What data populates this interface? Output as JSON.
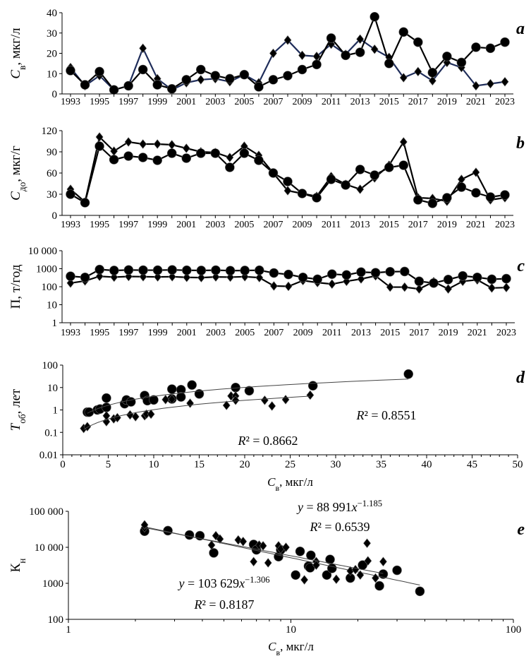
{
  "chart_data": [
    {
      "panel": "a",
      "type": "line",
      "ylabel": {
        "main": "C",
        "sub": "в",
        "unit": ", мкг/л"
      },
      "yticks": [
        "0",
        "10",
        "20",
        "30",
        "40"
      ],
      "ylim": [
        0,
        40
      ],
      "yscale": "linear",
      "xticks": [
        "1993",
        "1995",
        "1997",
        "1999",
        "2001",
        "2003",
        "2005",
        "2007",
        "2009",
        "2011",
        "2013",
        "2015",
        "2017",
        "2019",
        "2021",
        "2023"
      ],
      "x": [
        1993,
        1994,
        1995,
        1996,
        1997,
        1998,
        1999,
        2000,
        2001,
        2002,
        2003,
        2004,
        2005,
        2006,
        2007,
        2008,
        2009,
        2010,
        2011,
        2012,
        2013,
        2014,
        2015,
        2016,
        2017,
        2018,
        2019,
        2020,
        2021,
        2022,
        2023
      ],
      "series": [
        {
          "marker": "circle",
          "color": "#000000",
          "values": [
            11.5,
            4.5,
            11,
            2,
            4,
            12,
            4.5,
            2.5,
            7,
            12,
            9,
            7.5,
            9.5,
            3.5,
            7,
            9,
            12,
            14.5,
            27.5,
            19,
            20.5,
            38,
            15,
            30.5,
            25.5,
            10.5,
            18.5,
            15.5,
            23,
            22.5,
            25.5
          ]
        },
        {
          "marker": "diamond",
          "color": "#1f2d5a",
          "values": [
            13,
            4,
            9,
            2,
            4,
            22.5,
            7.5,
            2,
            5.5,
            7,
            7.5,
            6,
            9.5,
            5.5,
            20,
            26.5,
            19,
            18.5,
            24.5,
            19.5,
            27,
            22,
            18,
            8,
            11,
            6.5,
            15.5,
            13,
            4,
            5,
            6
          ]
        }
      ]
    },
    {
      "panel": "b",
      "type": "line",
      "ylabel": {
        "main": "C",
        "sub": "до",
        "unit": ", мкг/г"
      },
      "yticks": [
        "0",
        "30",
        "60",
        "90",
        "120"
      ],
      "ylim": [
        0,
        120
      ],
      "yscale": "linear",
      "xticks": [
        "1993",
        "1995",
        "1997",
        "1999",
        "2001",
        "2003",
        "2005",
        "2007",
        "2009",
        "2011",
        "2013",
        "2015",
        "2017",
        "2019",
        "2021",
        "2023"
      ],
      "x": [
        1993,
        1994,
        1995,
        1996,
        1997,
        1998,
        1999,
        2000,
        2001,
        2002,
        2003,
        2004,
        2005,
        2006,
        2007,
        2008,
        2009,
        2010,
        2011,
        2012,
        2013,
        2014,
        2015,
        2016,
        2017,
        2018,
        2019,
        2020,
        2021,
        2022,
        2023
      ],
      "series": [
        {
          "marker": "circle",
          "color": "#000000",
          "values": [
            30,
            18,
            98,
            79,
            84,
            82,
            78,
            88,
            81,
            88,
            88,
            68,
            88,
            78,
            60,
            48,
            31,
            25,
            51,
            43,
            65,
            57,
            68,
            71,
            22,
            17,
            25,
            40,
            32,
            26,
            29
          ]
        },
        {
          "marker": "diamond",
          "color": "#000000",
          "values": [
            37,
            19,
            111,
            91,
            104,
            101,
            101,
            100,
            95,
            90,
            89,
            82,
            98,
            85,
            60,
            35,
            31,
            27,
            55,
            44,
            37,
            53,
            71,
            104,
            25,
            24,
            20,
            51,
            61,
            22,
            25
          ]
        }
      ]
    },
    {
      "panel": "c",
      "type": "line",
      "ylabel": {
        "main": "П, т/год",
        "sub": "",
        "unit": ""
      },
      "yticks": [
        "1",
        "10",
        "100",
        "1000",
        "10 000"
      ],
      "ylim": [
        1,
        10000
      ],
      "yscale": "log",
      "xticks": [
        "1993",
        "1995",
        "1997",
        "1999",
        "2001",
        "2003",
        "2005",
        "2007",
        "2009",
        "2011",
        "2013",
        "2015",
        "2017",
        "2019",
        "2021",
        "2023"
      ],
      "x": [
        1993,
        1994,
        1995,
        1996,
        1997,
        1998,
        1999,
        2000,
        2001,
        2002,
        2003,
        2004,
        2005,
        2006,
        2007,
        2008,
        2009,
        2010,
        2011,
        2012,
        2013,
        2014,
        2015,
        2016,
        2017,
        2018,
        2019,
        2020,
        2021,
        2022,
        2023
      ],
      "series": [
        {
          "marker": "circle",
          "color": "#000000",
          "values": [
            380,
            330,
            900,
            800,
            850,
            830,
            830,
            860,
            820,
            800,
            830,
            780,
            800,
            820,
            580,
            480,
            330,
            260,
            500,
            450,
            650,
            600,
            680,
            700,
            200,
            160,
            250,
            400,
            330,
            260,
            280
          ]
        },
        {
          "marker": "diamond",
          "color": "#000000",
          "values": [
            160,
            210,
            380,
            340,
            370,
            360,
            350,
            360,
            330,
            320,
            350,
            340,
            360,
            320,
            110,
            105,
            220,
            170,
            140,
            200,
            270,
            400,
            95,
            95,
            75,
            190,
            75,
            200,
            240,
            85,
            90
          ]
        }
      ]
    },
    {
      "panel": "d",
      "type": "scatter",
      "ylabel": {
        "main": "T",
        "sub": "об",
        "unit": ", лет"
      },
      "xlabel": {
        "main": "C",
        "sub": "в",
        "unit": ", мкг/л"
      },
      "yticks": [
        "0.01",
        "0.1",
        "1",
        "10",
        "100"
      ],
      "ylim": [
        0.01,
        100
      ],
      "yscale": "log",
      "xticks": [
        "0",
        "5",
        "10",
        "15",
        "20",
        "25",
        "30",
        "35",
        "40",
        "45",
        "50"
      ],
      "xlim": [
        0,
        50
      ],
      "xscale": "linear",
      "series": [
        {
          "marker": "circle",
          "trendline": "power",
          "r2_label": "R² = 0.8551",
          "points": [
            [
              2.7,
              0.8
            ],
            [
              2.9,
              0.8
            ],
            [
              3.8,
              1.0
            ],
            [
              4.1,
              1.1
            ],
            [
              4.8,
              1.3
            ],
            [
              4.8,
              3.4
            ],
            [
              6.8,
              1.9
            ],
            [
              7.0,
              2.8
            ],
            [
              7.5,
              2.3
            ],
            [
              9.0,
              4.4
            ],
            [
              9.3,
              2.6
            ],
            [
              10,
              2.8
            ],
            [
              12,
              8.5
            ],
            [
              12,
              3.1
            ],
            [
              13,
              8.0
            ],
            [
              13,
              3.8
            ],
            [
              14.2,
              13
            ],
            [
              15,
              5.2
            ],
            [
              19,
              10
            ],
            [
              20.5,
              7.2
            ],
            [
              27.5,
              12
            ],
            [
              38,
              40
            ]
          ]
        },
        {
          "marker": "diamond",
          "trendline": "power",
          "r2_label": "R² = 0.8662",
          "points": [
            [
              2.3,
              0.15
            ],
            [
              2.7,
              0.18
            ],
            [
              4.8,
              0.3
            ],
            [
              4.8,
              0.55
            ],
            [
              5.6,
              0.4
            ],
            [
              6,
              0.45
            ],
            [
              7.4,
              0.6
            ],
            [
              8,
              0.5
            ],
            [
              9,
              0.55
            ],
            [
              9.2,
              0.65
            ],
            [
              9.7,
              0.65
            ],
            [
              11.3,
              2.9
            ],
            [
              12,
              3.0
            ],
            [
              14,
              2
            ],
            [
              18,
              1.6
            ],
            [
              18.5,
              4.2
            ],
            [
              19,
              4.2
            ],
            [
              19,
              2.7
            ],
            [
              22.2,
              2.7
            ],
            [
              23,
              1.5
            ],
            [
              24.5,
              2.9
            ],
            [
              27.2,
              4.6
            ]
          ]
        }
      ]
    },
    {
      "panel": "e",
      "type": "scatter",
      "ylabel": {
        "main": "К",
        "sub": "н",
        "unit": ""
      },
      "xlabel": {
        "main": "C",
        "sub": "в",
        "unit": ", мкг/л"
      },
      "yticks": [
        "100",
        "1000",
        "10 000",
        "100 000"
      ],
      "ylim": [
        100,
        100000
      ],
      "yscale": "log",
      "xticks": [
        "1",
        "10",
        "100"
      ],
      "xlim": [
        1,
        100
      ],
      "xscale": "log",
      "series": [
        {
          "marker": "circle",
          "trendline": "power",
          "coef": 103629,
          "exp": -1.306,
          "eq_label": {
            "pre": "y",
            "mid": " = 103 629",
            "x": "x",
            "sup": "−1.306"
          },
          "r2_label": "R² = 0.8187",
          "points": [
            [
              2.2,
              28000
            ],
            [
              2.8,
              29000
            ],
            [
              3.5,
              22000
            ],
            [
              3.9,
              21000
            ],
            [
              4.5,
              7000
            ],
            [
              6.8,
              12000
            ],
            [
              7,
              8500
            ],
            [
              8.8,
              5500
            ],
            [
              9,
              8500
            ],
            [
              10.5,
              1700
            ],
            [
              11,
              7700
            ],
            [
              12,
              3000
            ],
            [
              12.2,
              2700
            ],
            [
              12.3,
              6000
            ],
            [
              14.5,
              1700
            ],
            [
              15,
              4600
            ],
            [
              15.3,
              2600
            ],
            [
              18.5,
              1400
            ],
            [
              21,
              3200
            ],
            [
              25,
              850
            ],
            [
              26,
              1800
            ],
            [
              30,
              2300
            ],
            [
              38,
              600
            ]
          ]
        },
        {
          "marker": "diamond",
          "trendline": "power",
          "coef": 88991,
          "exp": -1.185,
          "eq_label": {
            "pre": "y",
            "mid": " = 88 991",
            "x": "x",
            "sup": "−1.185"
          },
          "r2_label": "R² = 0.6539",
          "points": [
            [
              2.2,
              35000
            ],
            [
              2.2,
              42000
            ],
            [
              4.4,
              11500
            ],
            [
              4.6,
              21000
            ],
            [
              4.8,
              17000
            ],
            [
              5.8,
              16000
            ],
            [
              6.1,
              14500
            ],
            [
              6.8,
              4000
            ],
            [
              7.2,
              11500
            ],
            [
              7.5,
              11000
            ],
            [
              7.9,
              3700
            ],
            [
              8.8,
              11000
            ],
            [
              9,
              9000
            ],
            [
              9.5,
              10000
            ],
            [
              11.5,
              1250
            ],
            [
              13,
              4000
            ],
            [
              13,
              3200
            ],
            [
              16,
              1300
            ],
            [
              18.5,
              2200
            ],
            [
              19.5,
              2400
            ],
            [
              20.5,
              1700
            ],
            [
              22,
              13000
            ],
            [
              22.2,
              4200
            ],
            [
              24,
              1400
            ],
            [
              26,
              4000
            ]
          ]
        }
      ]
    }
  ]
}
